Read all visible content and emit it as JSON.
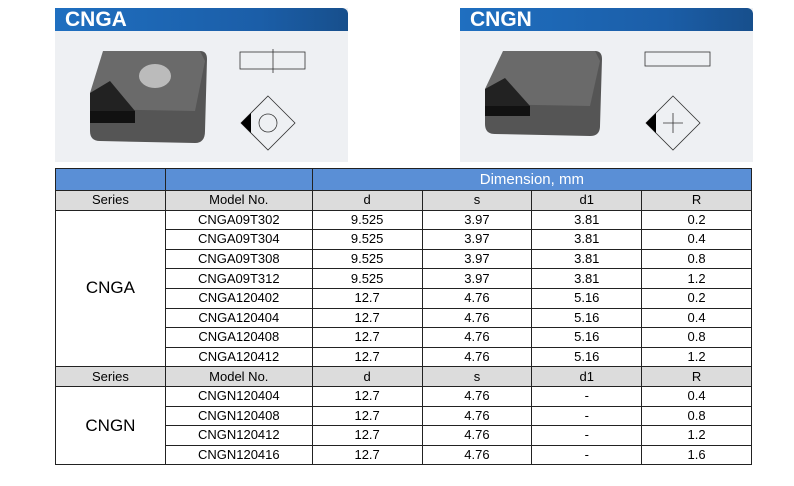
{
  "panels": [
    {
      "title": "CNGA"
    },
    {
      "title": "CNGN"
    }
  ],
  "table": {
    "dimension_header": "Dimension, mm",
    "headers": [
      "Series",
      "Model No.",
      "d",
      "s",
      "d1",
      "R"
    ],
    "groups": [
      {
        "series": "CNGA",
        "rows": [
          [
            "CNGA09T302",
            "9.525",
            "3.97",
            "3.81",
            "0.2"
          ],
          [
            "CNGA09T304",
            "9.525",
            "3.97",
            "3.81",
            "0.4"
          ],
          [
            "CNGA09T308",
            "9.525",
            "3.97",
            "3.81",
            "0.8"
          ],
          [
            "CNGA09T312",
            "9.525",
            "3.97",
            "3.81",
            "1.2"
          ],
          [
            "CNGA120402",
            "12.7",
            "4.76",
            "5.16",
            "0.2"
          ],
          [
            "CNGA120404",
            "12.7",
            "4.76",
            "5.16",
            "0.4"
          ],
          [
            "CNGA120408",
            "12.7",
            "4.76",
            "5.16",
            "0.8"
          ],
          [
            "CNGA120412",
            "12.7",
            "4.76",
            "5.16",
            "1.2"
          ]
        ]
      },
      {
        "series": "CNGN",
        "rows": [
          [
            "CNGN120404",
            "12.7",
            "4.76",
            "-",
            "0.4"
          ],
          [
            "CNGN120408",
            "12.7",
            "4.76",
            "-",
            "0.8"
          ],
          [
            "CNGN120412",
            "12.7",
            "4.76",
            "-",
            "1.2"
          ],
          [
            "CNGN120416",
            "12.7",
            "4.76",
            "-",
            "1.6"
          ]
        ]
      }
    ]
  }
}
